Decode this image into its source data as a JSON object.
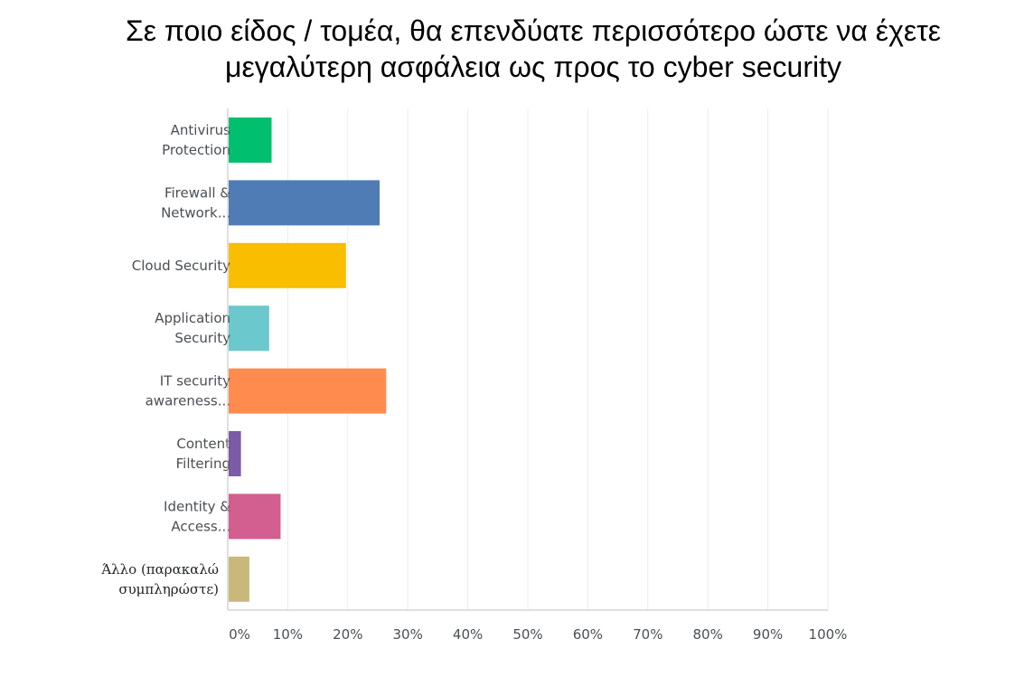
{
  "title": {
    "line1": "Σε ποιο είδος / τομέα, θα επενδύατε περισσότερο ώστε να έχετε",
    "line2": "μεγαλύτερη ασφάλεια ως προς το cyber security"
  },
  "chart_data": {
    "type": "bar",
    "orientation": "horizontal",
    "title": "Σε ποιο είδος / τομέα, θα επενδύατε περισσότερο ώστε να έχετε μεγαλύτερη ασφάλεια ως προς το cyber security",
    "categories": [
      [
        "Antivirus",
        "Protection"
      ],
      [
        "Firewall &",
        "Network..."
      ],
      [
        "Cloud Security"
      ],
      [
        "Application",
        "Security"
      ],
      [
        "IT security",
        "awareness..."
      ],
      [
        "Content",
        "Filtering"
      ],
      [
        "Identity &",
        "Access..."
      ],
      [
        "Άλλο (παρακαλώ",
        "συμπληρώστε)"
      ]
    ],
    "values": [
      7.3,
      25.3,
      19.7,
      6.9,
      26.4,
      2.2,
      8.8,
      3.6
    ],
    "colors": [
      "#00bf6f",
      "#507cb6",
      "#f9be00",
      "#6bc8cd",
      "#ff8b4f",
      "#7d5ba6",
      "#d25f90",
      "#c8b97a"
    ],
    "xlim": [
      0,
      100
    ],
    "x_ticks": [
      "0%",
      "10%",
      "20%",
      "30%",
      "40%",
      "50%",
      "60%",
      "70%",
      "80%",
      "90%",
      "100%"
    ],
    "xlabel": "",
    "ylabel": "",
    "grid": true,
    "legend": "none"
  }
}
